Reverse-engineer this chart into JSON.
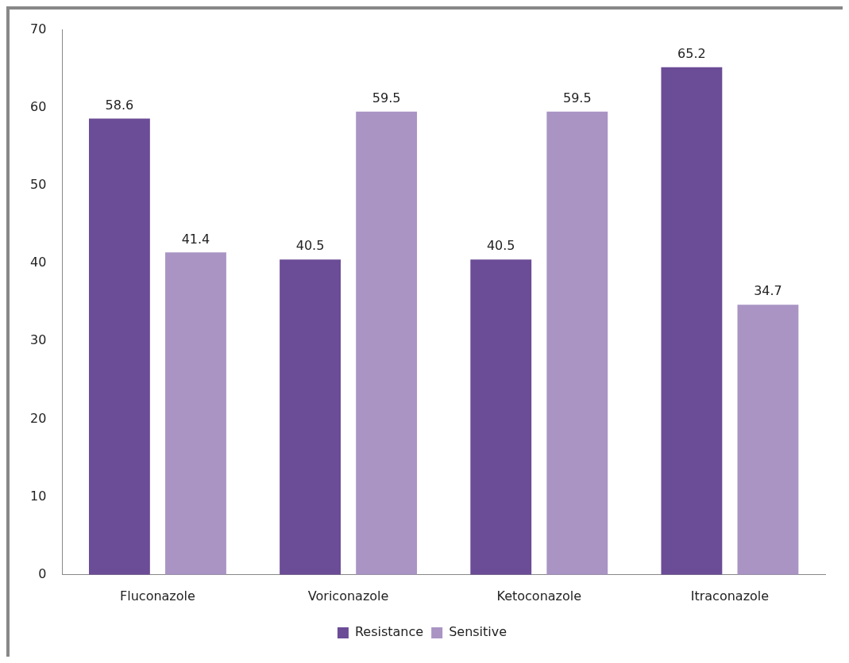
{
  "chart_data": {
    "type": "bar",
    "categories": [
      "Fluconazole",
      "Voriconazole",
      "Ketoconazole",
      "Itraconazole"
    ],
    "series": [
      {
        "name": "Resistance",
        "color": "#6b4c96",
        "values": [
          58.6,
          40.5,
          40.5,
          65.2
        ]
      },
      {
        "name": "Sensitive",
        "color": "#a994c4",
        "values": [
          41.4,
          59.5,
          59.5,
          34.7
        ]
      }
    ],
    "ylim": [
      0,
      70
    ],
    "yticks": [
      0,
      10,
      20,
      30,
      40,
      50,
      60,
      70
    ],
    "grid": false,
    "legend": "bottom",
    "data_labels": true
  }
}
